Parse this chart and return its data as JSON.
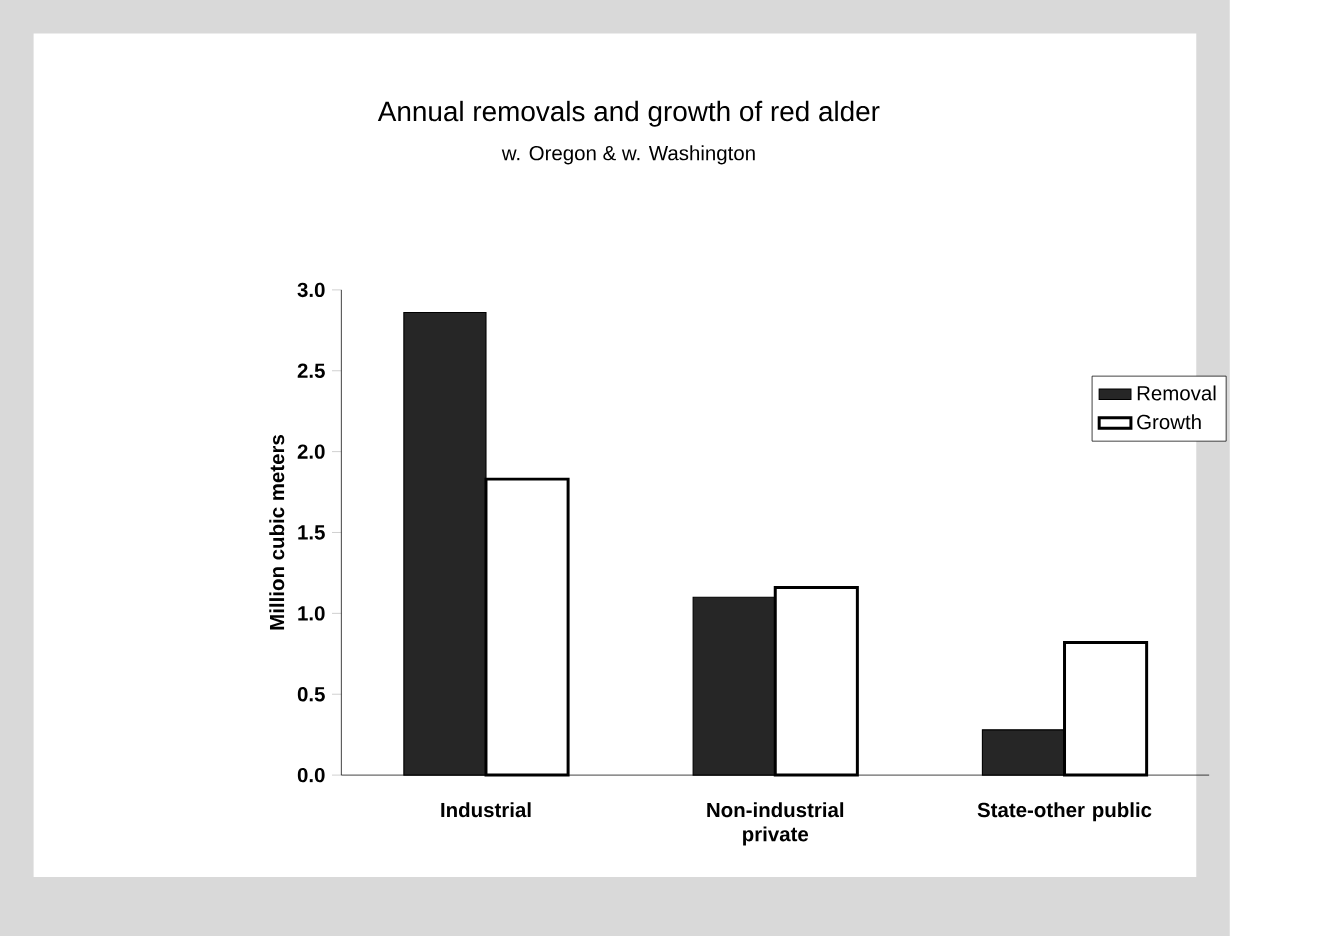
{
  "chart_data": {
    "type": "bar",
    "title": "Annual removals and growth of red alder",
    "subtitle": "w. Oregon & w. Washington",
    "ylabel": "Million cubic meters",
    "categories": [
      "Industrial",
      "Non-industrial private",
      "State-other public"
    ],
    "series": [
      {
        "name": "Removal",
        "color": "#262626",
        "values": [
          2.86,
          1.1,
          0.28
        ]
      },
      {
        "name": "Growth",
        "color": "#ffffff",
        "values": [
          1.83,
          1.16,
          0.82
        ]
      }
    ],
    "ylim": [
      0,
      3.0
    ],
    "yticks": [
      {
        "value": 0,
        "label": "0.0"
      },
      {
        "value": 0.5,
        "label": "0.5"
      },
      {
        "value": 1,
        "label": "1.0"
      },
      {
        "value": 1.5,
        "label": "1.5"
      },
      {
        "value": 2,
        "label": "2.0"
      },
      {
        "value": 2.5,
        "label": "2.5"
      },
      {
        "value": 3,
        "label": "3.0"
      }
    ],
    "legend": "top right"
  }
}
